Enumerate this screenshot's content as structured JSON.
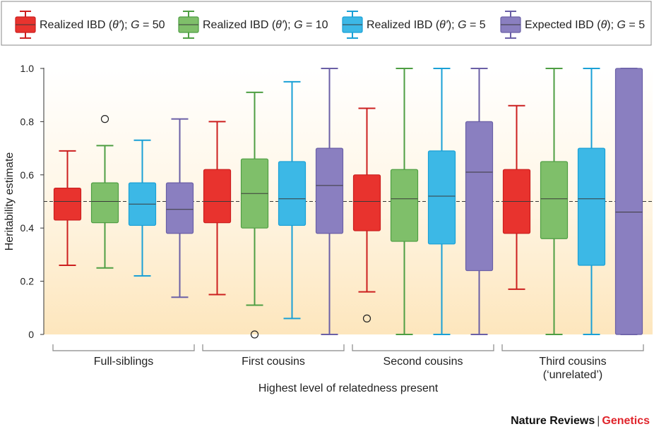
{
  "chart_data": {
    "type": "box",
    "ylabel": "Heritability estimate",
    "xlabel": "Highest level of relatedness present",
    "ylim": [
      0,
      1.0
    ],
    "yticks": [
      "0",
      "0.2",
      "0.4",
      "0.6",
      "0.8",
      "1.0"
    ],
    "reference_line": 0.5,
    "legend_position": "top",
    "series": [
      {
        "legend_parts": [
          "Realized IBD (",
          "θ′",
          "); ",
          "G",
          " = 50"
        ],
        "fill": "#e8332e",
        "stroke": "#cc1f1f"
      },
      {
        "legend_parts": [
          "Realized IBD (",
          "θ′",
          "); ",
          "G",
          " = 10"
        ],
        "fill": "#7fbf6a",
        "stroke": "#4e9e43"
      },
      {
        "legend_parts": [
          "Realized IBD (",
          "θ′",
          "); ",
          "G",
          " = 5"
        ],
        "fill": "#3cb8e6",
        "stroke": "#1aa0d6"
      },
      {
        "legend_parts": [
          "Expected IBD (",
          "θ",
          "); ",
          "G",
          " = 5"
        ],
        "fill": "#8a7fc0",
        "stroke": "#6a5fa6"
      }
    ],
    "groups": [
      {
        "label_lines": [
          "Full-siblings"
        ],
        "boxes": [
          {
            "min": 0.26,
            "q1": 0.43,
            "median": 0.5,
            "q3": 0.55,
            "max": 0.69,
            "outliers": []
          },
          {
            "min": 0.25,
            "q1": 0.42,
            "median": 0.5,
            "q3": 0.57,
            "max": 0.71,
            "outliers": [
              0.81
            ]
          },
          {
            "min": 0.22,
            "q1": 0.41,
            "median": 0.49,
            "q3": 0.57,
            "max": 0.73,
            "outliers": []
          },
          {
            "min": 0.14,
            "q1": 0.38,
            "median": 0.47,
            "q3": 0.57,
            "max": 0.81,
            "outliers": []
          }
        ]
      },
      {
        "label_lines": [
          "First cousins"
        ],
        "boxes": [
          {
            "min": 0.15,
            "q1": 0.42,
            "median": 0.5,
            "q3": 0.62,
            "max": 0.8,
            "outliers": []
          },
          {
            "min": 0.11,
            "q1": 0.4,
            "median": 0.53,
            "q3": 0.66,
            "max": 0.91,
            "outliers": [
              0.0
            ]
          },
          {
            "min": 0.06,
            "q1": 0.41,
            "median": 0.51,
            "q3": 0.65,
            "max": 0.95,
            "outliers": []
          },
          {
            "min": 0.0,
            "q1": 0.38,
            "median": 0.56,
            "q3": 0.7,
            "max": 1.0,
            "outliers": []
          }
        ]
      },
      {
        "label_lines": [
          "Second cousins"
        ],
        "boxes": [
          {
            "min": 0.16,
            "q1": 0.39,
            "median": 0.5,
            "q3": 0.6,
            "max": 0.85,
            "outliers": [
              0.06
            ]
          },
          {
            "min": 0.0,
            "q1": 0.35,
            "median": 0.51,
            "q3": 0.62,
            "max": 1.0,
            "outliers": []
          },
          {
            "min": 0.0,
            "q1": 0.34,
            "median": 0.52,
            "q3": 0.69,
            "max": 1.0,
            "outliers": []
          },
          {
            "min": 0.0,
            "q1": 0.24,
            "median": 0.61,
            "q3": 0.8,
            "max": 1.0,
            "outliers": []
          }
        ]
      },
      {
        "label_lines": [
          "Third cousins",
          "(‘unrelated’)"
        ],
        "boxes": [
          {
            "min": 0.17,
            "q1": 0.38,
            "median": 0.5,
            "q3": 0.62,
            "max": 0.86,
            "outliers": []
          },
          {
            "min": 0.0,
            "q1": 0.36,
            "median": 0.51,
            "q3": 0.65,
            "max": 1.0,
            "outliers": []
          },
          {
            "min": 0.0,
            "q1": 0.26,
            "median": 0.51,
            "q3": 0.7,
            "max": 1.0,
            "outliers": []
          },
          {
            "min": 0.0,
            "q1": 0.0,
            "median": 0.46,
            "q3": 1.0,
            "max": 1.0,
            "outliers": []
          }
        ]
      }
    ]
  },
  "footer": {
    "journal": "Nature Reviews",
    "separator": "|",
    "section": "Genetics"
  }
}
